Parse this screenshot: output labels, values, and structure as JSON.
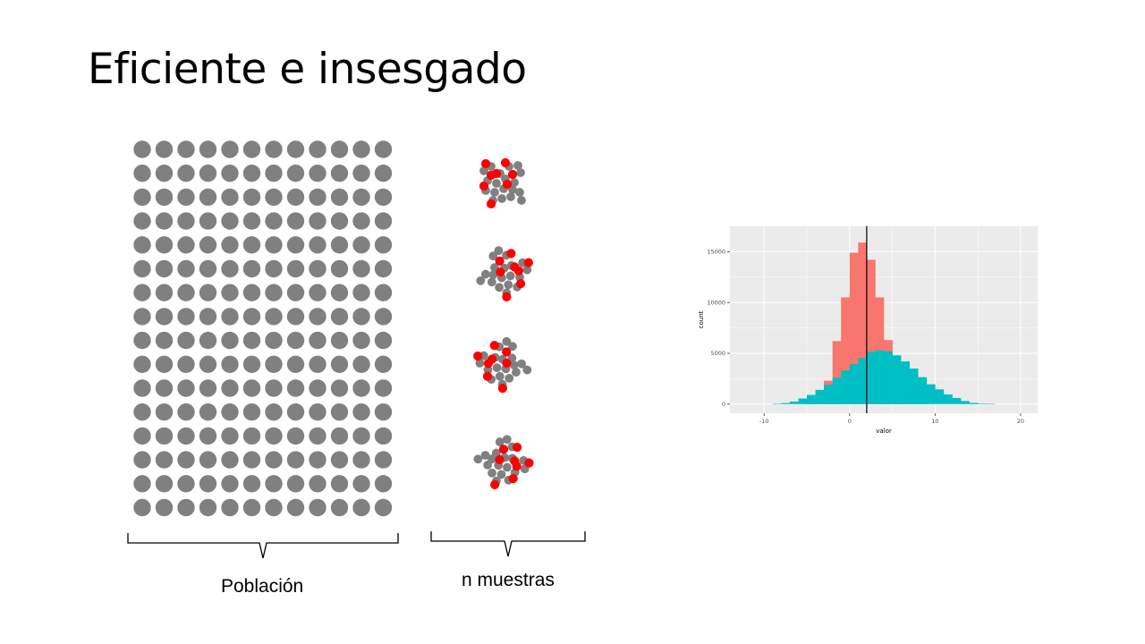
{
  "slide": {
    "title": "Eficiente e insesgado",
    "population_label": "Población",
    "samples_label": "n muestras"
  },
  "population": {
    "rows": 16,
    "cols": 12,
    "color": "#808080"
  },
  "samples": {
    "count": 4,
    "colors": {
      "member": "#808080",
      "highlight": "#ff0000"
    }
  },
  "chart_data": {
    "type": "bar",
    "title": "",
    "xlabel": "valor",
    "ylabel": "count",
    "xlim": [
      -14,
      22
    ],
    "ylim": [
      -900,
      17500
    ],
    "xticks": [
      -10,
      0,
      10,
      20
    ],
    "yticks": [
      0,
      5000,
      10000,
      15000
    ],
    "grid": true,
    "panel_background": "#ebebeb",
    "vline_x": 2,
    "bin_width": 1,
    "series": [
      {
        "color": "#f8766d",
        "bins": [
          {
            "x": -4.5,
            "y": 30
          },
          {
            "x": -3.5,
            "y": 600
          },
          {
            "x": -2.5,
            "y": 2300
          },
          {
            "x": -1.5,
            "y": 6200
          },
          {
            "x": -0.5,
            "y": 10500
          },
          {
            "x": 0.5,
            "y": 14900
          },
          {
            "x": 1.5,
            "y": 15900
          },
          {
            "x": 2.5,
            "y": 14200
          },
          {
            "x": 3.5,
            "y": 10500
          },
          {
            "x": 4.5,
            "y": 6300
          },
          {
            "x": 5.5,
            "y": 3000
          },
          {
            "x": 6.5,
            "y": 1200
          },
          {
            "x": 7.5,
            "y": 300
          },
          {
            "x": 8.5,
            "y": 40
          }
        ]
      },
      {
        "color": "#00bfc4",
        "bins": [
          {
            "x": -8.5,
            "y": 20
          },
          {
            "x": -7.5,
            "y": 100
          },
          {
            "x": -6.5,
            "y": 250
          },
          {
            "x": -5.5,
            "y": 550
          },
          {
            "x": -4.5,
            "y": 900
          },
          {
            "x": -3.5,
            "y": 1400
          },
          {
            "x": -2.5,
            "y": 1900
          },
          {
            "x": -1.5,
            "y": 2600
          },
          {
            "x": -0.5,
            "y": 3300
          },
          {
            "x": 0.5,
            "y": 3950
          },
          {
            "x": 1.5,
            "y": 4550
          },
          {
            "x": 2.5,
            "y": 5150
          },
          {
            "x": 3.5,
            "y": 5300
          },
          {
            "x": 4.5,
            "y": 5200
          },
          {
            "x": 5.5,
            "y": 4800
          },
          {
            "x": 6.5,
            "y": 4200
          },
          {
            "x": 7.5,
            "y": 3500
          },
          {
            "x": 8.5,
            "y": 2650
          },
          {
            "x": 9.5,
            "y": 1950
          },
          {
            "x": 10.5,
            "y": 1450
          },
          {
            "x": 11.5,
            "y": 950
          },
          {
            "x": 12.5,
            "y": 600
          },
          {
            "x": 13.5,
            "y": 300
          },
          {
            "x": 14.5,
            "y": 120
          },
          {
            "x": 15.5,
            "y": 50
          },
          {
            "x": 16.5,
            "y": 20
          }
        ]
      }
    ]
  }
}
